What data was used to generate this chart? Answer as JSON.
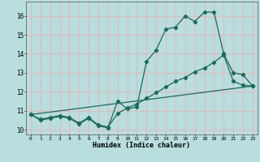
{
  "xlabel": "Humidex (Indice chaleur)",
  "bg_color": "#b8dede",
  "grid_color": "#e8b8b8",
  "line_color": "#1a6b5a",
  "xlim": [
    -0.5,
    23.5
  ],
  "ylim": [
    9.75,
    16.75
  ],
  "xticks": [
    0,
    1,
    2,
    3,
    4,
    5,
    6,
    7,
    8,
    9,
    10,
    11,
    12,
    13,
    14,
    15,
    16,
    17,
    18,
    19,
    20,
    21,
    22,
    23
  ],
  "yticks": [
    10,
    11,
    12,
    13,
    14,
    15,
    16
  ],
  "curve1_x": [
    0,
    1,
    2,
    3,
    4,
    5,
    6,
    7,
    8,
    9,
    10,
    11,
    12,
    13,
    14,
    15,
    16,
    17,
    18,
    19,
    20,
    21,
    22,
    23
  ],
  "curve1_y": [
    10.8,
    10.5,
    10.6,
    10.7,
    10.6,
    10.3,
    10.6,
    10.2,
    10.1,
    11.5,
    11.1,
    11.2,
    13.6,
    14.2,
    15.3,
    15.4,
    16.0,
    15.7,
    16.2,
    16.2,
    14.0,
    13.0,
    12.9,
    12.3
  ],
  "curve2_x": [
    0,
    1,
    2,
    3,
    4,
    5,
    6,
    7,
    8,
    9,
    10,
    11,
    12,
    13,
    14,
    15,
    16,
    17,
    18,
    19,
    20,
    21,
    22,
    23
  ],
  "curve2_y": [
    10.8,
    10.55,
    10.65,
    10.75,
    10.65,
    10.35,
    10.65,
    10.25,
    10.15,
    10.85,
    11.15,
    11.35,
    11.65,
    11.95,
    12.25,
    12.55,
    12.75,
    13.05,
    13.25,
    13.55,
    13.95,
    12.55,
    12.35,
    12.3
  ],
  "curve3_x": [
    0,
    23
  ],
  "curve3_y": [
    10.8,
    12.3
  ]
}
